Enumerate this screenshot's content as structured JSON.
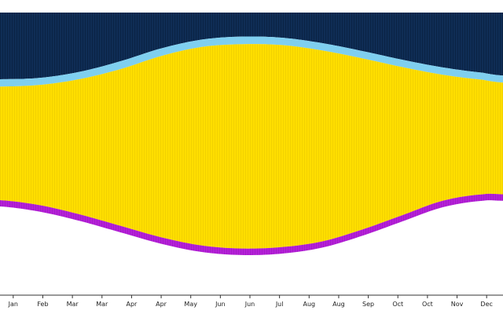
{
  "chart_data": {
    "type": "area",
    "x_tick_labels": [
      "Jan",
      "Feb",
      "Mar",
      "Mar",
      "Apr",
      "Apr",
      "May",
      "Jun",
      "Jun",
      "Jul",
      "Aug",
      "Aug",
      "Sep",
      "Oct",
      "Oct",
      "Nov",
      "Dec"
    ],
    "x": [
      0,
      0.08,
      0.16,
      0.24,
      0.32,
      0.4,
      0.48,
      0.56,
      0.64,
      0.72,
      0.8,
      0.88,
      0.96,
      1.0
    ],
    "series": [
      {
        "key": "night",
        "color": "#0d2a4f",
        "ylow": [
          0.764,
          0.769,
          0.791,
          0.828,
          0.873,
          0.904,
          0.915,
          0.911,
          0.892,
          0.864,
          0.833,
          0.806,
          0.787,
          0.777
        ],
        "yhigh": [
          1,
          1,
          1,
          1,
          1,
          1,
          1,
          1,
          1,
          1,
          1,
          1,
          1,
          1
        ]
      },
      {
        "key": "twilight",
        "color": "#7fcfef",
        "ylow": [
          0.738,
          0.744,
          0.765,
          0.8,
          0.846,
          0.878,
          0.888,
          0.885,
          0.866,
          0.838,
          0.807,
          0.78,
          0.762,
          0.752
        ],
        "yhigh": [
          0.764,
          0.769,
          0.791,
          0.828,
          0.873,
          0.904,
          0.915,
          0.911,
          0.892,
          0.864,
          0.833,
          0.806,
          0.787,
          0.777
        ]
      },
      {
        "key": "daylight",
        "color": "#ffdd00",
        "ylow": [
          0.336,
          0.318,
          0.285,
          0.245,
          0.205,
          0.176,
          0.165,
          0.17,
          0.19,
          0.232,
          0.283,
          0.334,
          0.357,
          0.357
        ],
        "yhigh": [
          0.738,
          0.744,
          0.765,
          0.8,
          0.846,
          0.878,
          0.888,
          0.885,
          0.866,
          0.838,
          0.807,
          0.78,
          0.762,
          0.752
        ]
      },
      {
        "key": "dusk",
        "color": "#b41fd6",
        "ylow": [
          0.314,
          0.295,
          0.262,
          0.222,
          0.182,
          0.153,
          0.142,
          0.147,
          0.168,
          0.21,
          0.261,
          0.311,
          0.334,
          0.334
        ],
        "yhigh": [
          0.336,
          0.318,
          0.285,
          0.245,
          0.205,
          0.176,
          0.165,
          0.17,
          0.19,
          0.232,
          0.283,
          0.334,
          0.357,
          0.357
        ]
      }
    ],
    "ylim": [
      0,
      1
    ],
    "grid": false,
    "legend": "none"
  }
}
